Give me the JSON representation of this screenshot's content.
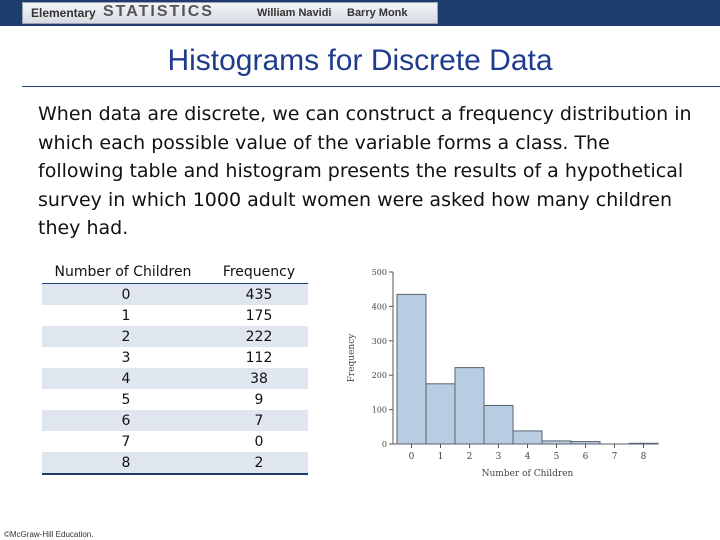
{
  "header": {
    "book_prefix": "Elementary",
    "book_title": "STATISTICS",
    "author1": "William Navidi",
    "author2": "Barry Monk"
  },
  "slide": {
    "title": "Histograms for Discrete Data",
    "paragraph": "When data are discrete, we can construct a frequency distribution in which each possible value of the variable forms a class. The following table and histogram presents the results of a hypothetical survey in which 1000 adult women were asked how many children they had."
  },
  "table": {
    "headers": [
      "Number of Children",
      "Frequency"
    ],
    "rows": [
      [
        "0",
        "435"
      ],
      [
        "1",
        "175"
      ],
      [
        "2",
        "222"
      ],
      [
        "3",
        "112"
      ],
      [
        "4",
        "38"
      ],
      [
        "5",
        "9"
      ],
      [
        "6",
        "7"
      ],
      [
        "7",
        "0"
      ],
      [
        "8",
        "2"
      ]
    ]
  },
  "chart_data": {
    "type": "bar",
    "categories": [
      "0",
      "1",
      "2",
      "3",
      "4",
      "5",
      "6",
      "7",
      "8"
    ],
    "values": [
      435,
      175,
      222,
      112,
      38,
      9,
      7,
      0,
      2
    ],
    "xlabel": "Number of Children",
    "ylabel": "Frequency",
    "ylim": [
      0,
      500
    ],
    "yticks": [
      "0",
      "100",
      "200",
      "300",
      "400",
      "500"
    ],
    "bar_color": "#b9cde2",
    "bar_edge_color": "#56626e"
  },
  "footer": {
    "copyright": "©McGraw-Hill Education."
  }
}
